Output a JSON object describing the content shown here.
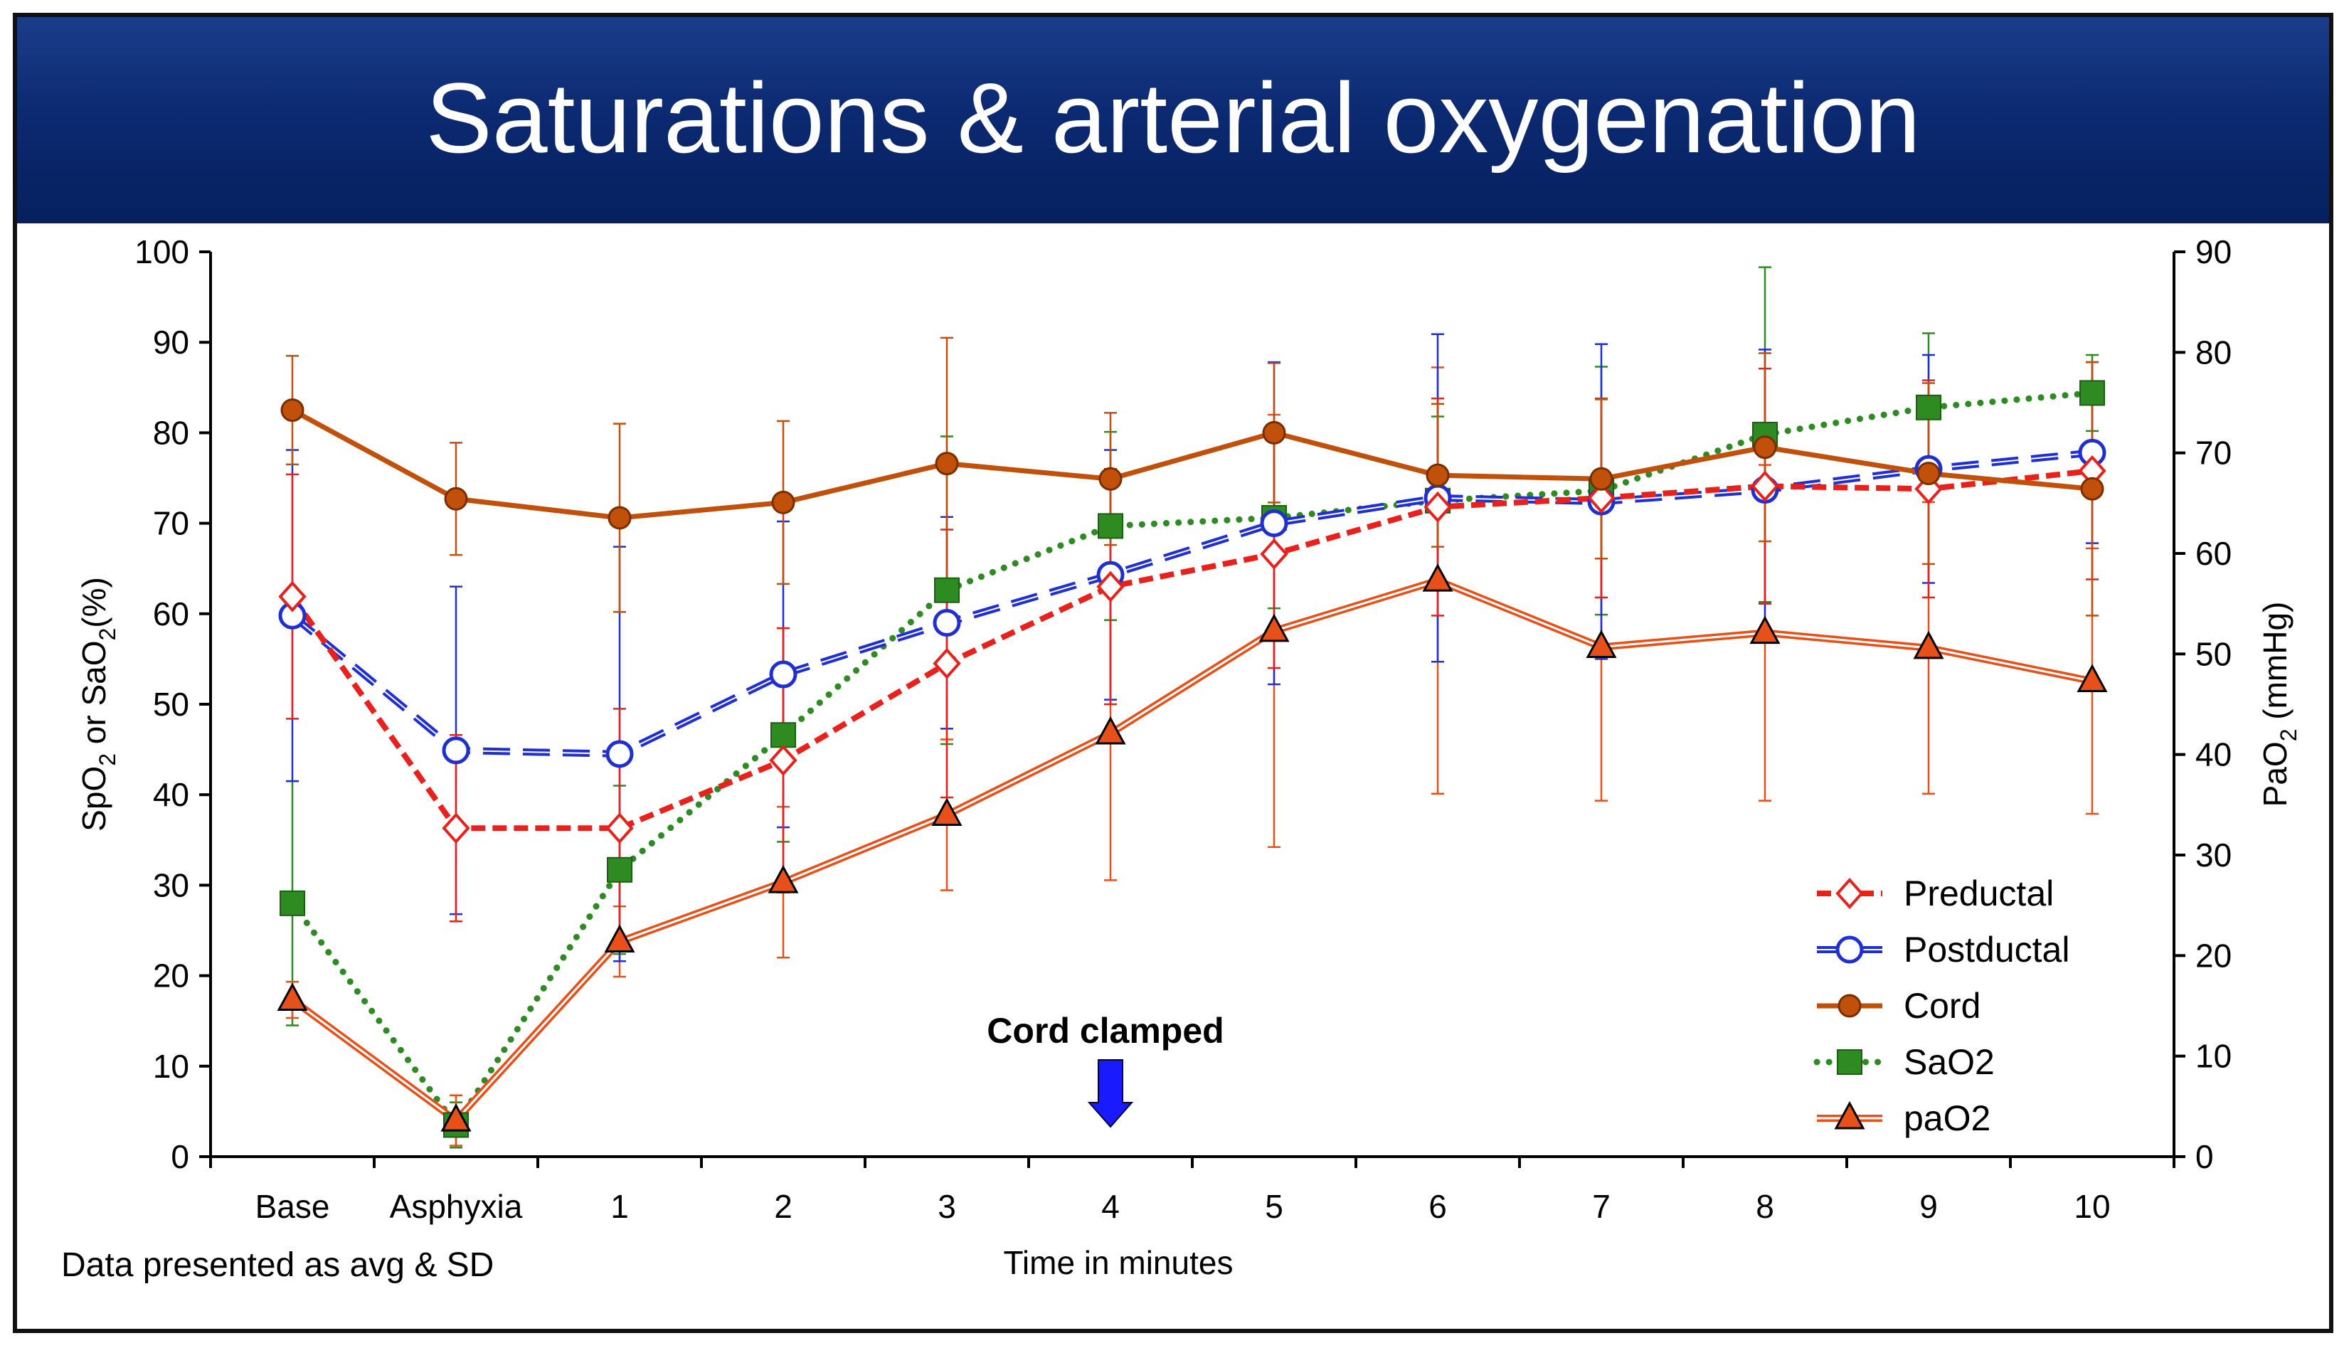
{
  "slide": {
    "title": "Saturations & arterial oxygenation",
    "title_bg": "#0c2a72"
  },
  "chart_data": {
    "type": "line",
    "title": "Saturations & arterial oxygenation",
    "categories": [
      "Base",
      "Asphyxia",
      "1",
      "2",
      "3",
      "4",
      "5",
      "6",
      "7",
      "8",
      "9",
      "10"
    ],
    "xlabel": "Time in minutes",
    "ylabel_left": {
      "prefix": "SpO",
      "sub1": "2",
      "mid": " or SaO",
      "sub2": "2",
      "suffix": "(%)"
    },
    "ylabel_right": {
      "prefix": "PaO",
      "sub": "2",
      "suffix": " (mmHg)"
    },
    "ylim_left": [
      0,
      100
    ],
    "ylim_right": [
      0,
      90
    ],
    "yticks_left": [
      "0",
      "10",
      "20",
      "30",
      "40",
      "50",
      "60",
      "70",
      "80",
      "90",
      "100"
    ],
    "yticks_right": [
      "0",
      "10",
      "20",
      "30",
      "40",
      "50",
      "60",
      "70",
      "80",
      "90"
    ],
    "legend_position": "bottom-right",
    "note": "Data presented as avg & SD",
    "annotation": {
      "label": "Cord clamped",
      "category": "4",
      "arrow_color": "#1a1aff"
    },
    "series": [
      {
        "name": "Cord",
        "axis": "left",
        "color": "#c0500a",
        "line": "solid",
        "marker": "circle-filled",
        "values": [
          82.5,
          72.7,
          70.6,
          72.3,
          76.6,
          74.9,
          80.0,
          75.3,
          74.9,
          78.4,
          75.5,
          73.8
        ],
        "errors": [
          6.0,
          6.2,
          10.4,
          9.0,
          13.9,
          7.3,
          7.7,
          7.9,
          8.8,
          10.4,
          10.0,
          14.0
        ]
      },
      {
        "name": "Preductal",
        "axis": "left",
        "color": "#e8211d",
        "line": "dashed",
        "marker": "diamond-open",
        "values": [
          61.9,
          36.3,
          36.3,
          43.8,
          54.5,
          63.0,
          66.6,
          71.8,
          72.8,
          74.1,
          73.8,
          75.8
        ],
        "errors": [
          13.5,
          10.3,
          13.2,
          14.6,
          14.8,
          13.0,
          12.6,
          12.0,
          11.0,
          13.0,
          12.0,
          12.0
        ]
      },
      {
        "name": "Postductal",
        "axis": "left",
        "color": "#1f2fd0",
        "line": "long-dashed",
        "marker": "circle-open",
        "values": [
          59.8,
          44.9,
          44.5,
          53.3,
          59.0,
          64.3,
          70.0,
          72.8,
          72.4,
          73.7,
          76.0,
          77.8
        ],
        "errors": [
          18.3,
          18.1,
          22.9,
          16.9,
          11.7,
          13.8,
          17.8,
          18.1,
          17.4,
          15.5,
          12.6,
          10.0
        ]
      },
      {
        "name": "SaO2",
        "axis": "left",
        "color": "#2e8b22",
        "line": "dotted",
        "marker": "square-filled",
        "values": [
          28.0,
          3.5,
          31.7,
          46.6,
          62.6,
          69.7,
          70.6,
          72.5,
          73.6,
          79.8,
          82.8,
          84.4
        ],
        "errors": [
          13.5,
          2.5,
          9.3,
          11.8,
          17.0,
          10.4,
          10.0,
          9.3,
          13.7,
          18.5,
          8.2,
          4.2
        ]
      },
      {
        "name": "paO2",
        "axis": "right",
        "color": "#e8501a",
        "line": "double",
        "marker": "triangle-filled",
        "values": [
          15.6,
          3.6,
          21.4,
          27.3,
          34.0,
          42.1,
          52.3,
          57.3,
          50.7,
          52.1,
          50.6,
          47.3
        ],
        "errors": [
          1.8,
          2.5,
          3.5,
          7.5,
          7.5,
          14.6,
          21.5,
          21.2,
          15.3,
          16.7,
          14.5,
          13.2
        ]
      }
    ],
    "legend_order": [
      "Preductal",
      "Postductal",
      "Cord",
      "SaO2",
      "paO2"
    ]
  }
}
